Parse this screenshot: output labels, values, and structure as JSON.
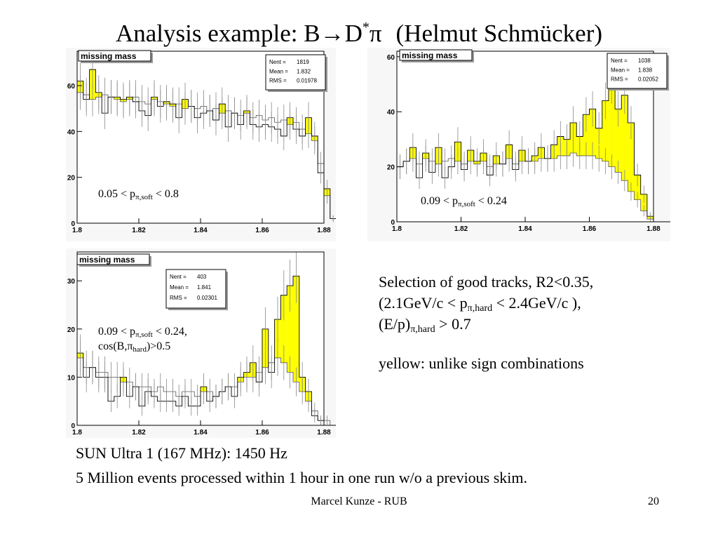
{
  "slide": {
    "title_main": "Analysis example: B",
    "title_arrow": "→",
    "title_D": "D",
    "title_star": "*",
    "title_pi": "π",
    "title_author": "(Helmut Schmücker)",
    "selection_line1": "Selection of good tracks, R2<0.35,",
    "selection_line2a": "(2.1GeV/c < p",
    "selection_line2sub": "π,hard",
    "selection_line2b": " < 2.4GeV/c ),",
    "selection_line3a": "(E/p)",
    "selection_line3sub": "π,hard",
    "selection_line3b": " > 0.7",
    "yellow_note": "yellow: unlike sign combinations",
    "footer_line1": "SUN Ultra 1 (167 MHz): 1450 Hz",
    "footer_line2": "5 Million events processed within 1 hour in one run w/o a previous skim.",
    "author": "Marcel Kunze - RUB",
    "page_number": "20"
  },
  "colors": {
    "fill": "#ffff00",
    "line": "#000000",
    "error": "#888888",
    "frame": "#000000",
    "background": "#ffffff"
  },
  "chart_data": [
    {
      "type": "bar",
      "title": "missing mass",
      "stats": [
        {
          "label": "Nent =",
          "value": "1819"
        },
        {
          "label": "Mean =",
          "value": "1.832"
        },
        {
          "label": "RMS  =",
          "value": "0.01978"
        }
      ],
      "cut": {
        "a": "0.05 < p",
        "sub": "π,soft",
        "b": " < 0.8",
        "c": "",
        "csub": "",
        "d": ""
      },
      "xlim": [
        1.8,
        1.88
      ],
      "ylim": [
        0,
        75
      ],
      "xticks": [
        1.8,
        1.82,
        1.84,
        1.86,
        1.88
      ],
      "yticks": [
        0,
        20,
        40,
        60
      ],
      "xtick_labels": [
        "1.8",
        "1.82",
        "1.84",
        "1.86",
        "1.88"
      ],
      "ytick_labels": [
        "0",
        "20",
        "40",
        "60"
      ],
      "bin_width": 0.002,
      "fg": [
        62,
        54,
        67,
        57,
        48,
        55,
        55,
        54,
        55,
        53,
        49,
        47,
        55,
        51,
        53,
        52,
        46,
        54,
        51,
        46,
        48,
        49,
        45,
        52,
        42,
        48,
        43,
        49,
        43,
        42,
        43,
        42,
        41,
        38,
        46,
        41,
        38,
        46,
        38,
        22,
        15,
        2,
        0,
        0
      ],
      "bg": [
        57,
        56,
        54,
        55,
        56,
        55,
        54,
        53,
        54,
        55,
        53,
        52,
        54,
        53,
        52,
        51,
        52,
        50,
        51,
        50,
        51,
        49,
        50,
        48,
        49,
        48,
        47,
        48,
        46,
        47,
        45,
        46,
        44,
        45,
        43,
        44,
        41,
        39,
        36,
        26,
        12,
        2,
        1,
        0
      ]
    },
    {
      "type": "bar",
      "title": "missing mass",
      "stats": [
        {
          "label": "Nent =",
          "value": "1038"
        },
        {
          "label": "Mean =",
          "value": "1.838"
        },
        {
          "label": "RMS  =",
          "value": "0.02052"
        }
      ],
      "cut": {
        "a": "0.09 < p",
        "sub": "π,soft",
        "b": " < 0.24",
        "c": "",
        "csub": "",
        "d": ""
      },
      "xlim": [
        1.8,
        1.88
      ],
      "ylim": [
        0,
        62
      ],
      "xticks": [
        1.8,
        1.82,
        1.84,
        1.86,
        1.88
      ],
      "yticks": [
        0,
        20,
        40,
        60
      ],
      "xtick_labels": [
        "1.8",
        "1.82",
        "1.84",
        "1.86",
        "1.88"
      ],
      "ytick_labels": [
        "0",
        "20",
        "40",
        "60"
      ],
      "bin_width": 0.002,
      "fg": [
        20,
        22,
        27,
        16,
        25,
        18,
        27,
        16,
        20,
        29,
        19,
        26,
        22,
        25,
        17,
        24,
        21,
        28,
        19,
        26,
        22,
        24,
        27,
        23,
        28,
        31,
        30,
        36,
        31,
        39,
        41,
        34,
        44,
        50,
        41,
        46,
        36,
        17,
        10,
        2,
        0,
        0,
        0,
        0
      ],
      "bg": [
        20,
        22,
        23,
        21,
        23,
        22,
        21,
        22,
        23,
        22,
        21,
        22,
        21,
        22,
        20,
        21,
        21,
        23,
        21,
        22,
        22,
        22,
        23,
        23,
        23,
        24,
        24,
        25,
        24,
        24,
        24,
        23,
        22,
        20,
        18,
        15,
        11,
        8,
        4,
        1,
        0,
        0,
        0,
        0
      ]
    },
    {
      "type": "bar",
      "title": "missing mass",
      "stats": [
        {
          "label": "Nent =",
          "value": "403"
        },
        {
          "label": "Mean =",
          "value": "1.841"
        },
        {
          "label": "RMS  =",
          "value": "0.02301"
        }
      ],
      "cut": {
        "a": "0.09 < p",
        "sub": "π,soft",
        "b": " < 0.24,",
        "c": "cos(B,π",
        "csub": "hard",
        "d": ")>0.5"
      },
      "xlim": [
        1.8,
        1.88
      ],
      "ylim": [
        0,
        36
      ],
      "xticks": [
        1.8,
        1.82,
        1.84,
        1.86,
        1.88
      ],
      "yticks": [
        0,
        10,
        20,
        30
      ],
      "xtick_labels": [
        "1.8",
        "1.82",
        "1.84",
        "1.86",
        "1.88"
      ],
      "ytick_labels": [
        "0",
        "10",
        "20",
        "30"
      ],
      "bin_width": 0.002,
      "fg": [
        15,
        10,
        12,
        10,
        10,
        5,
        6,
        10,
        6,
        8,
        4,
        7,
        6,
        5,
        5,
        5,
        4,
        6,
        4,
        4,
        8,
        5,
        6,
        7,
        8,
        6,
        10,
        11,
        13,
        9,
        20,
        11,
        22,
        27,
        29,
        31,
        10,
        7,
        2,
        1,
        0,
        0,
        0,
        0
      ],
      "bg": [
        14,
        12,
        12,
        11,
        11,
        10,
        10,
        9,
        9,
        8,
        8,
        8,
        7,
        8,
        7,
        7,
        6,
        7,
        7,
        6,
        7,
        7,
        6,
        7,
        8,
        8,
        9,
        10,
        10,
        11,
        12,
        13,
        14,
        13,
        11,
        9,
        7,
        5,
        3,
        1,
        1,
        0,
        0,
        0
      ]
    }
  ]
}
